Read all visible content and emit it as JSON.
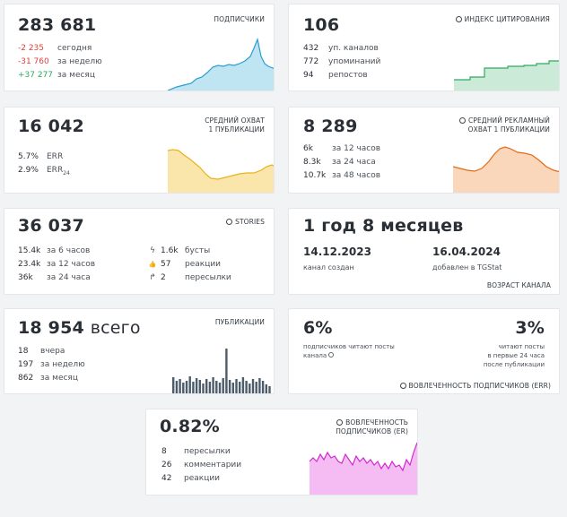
{
  "subscribers": {
    "value": "283 681",
    "label": "ПОДПИСЧИКИ",
    "rows": [
      {
        "value": "-2 235",
        "text": "сегодня"
      },
      {
        "value": "-31 760",
        "text": "за неделю"
      },
      {
        "value": "+37 277",
        "text": "за месяц"
      }
    ],
    "color": "#49b5dc"
  },
  "citation": {
    "value": "106",
    "label": "ИНДЕКС ЦИТИРОВАНИЯ",
    "rows": [
      {
        "value": "432",
        "text": "уп. каналов"
      },
      {
        "value": "772",
        "text": "упоминаний"
      },
      {
        "value": "94",
        "text": "репостов"
      }
    ],
    "color": "#2eaa5f"
  },
  "reach": {
    "value": "16 042",
    "label_line1": "СРЕДНИЙ ОХВАТ",
    "label_line2": "1 ПУБЛИКАЦИИ",
    "rows": [
      {
        "value": "5.7%",
        "text": "ERR"
      },
      {
        "value": "2.9%",
        "text": "ERR",
        "sub": "24"
      }
    ],
    "color": "#f2c12e"
  },
  "ad_reach": {
    "value": "8 289",
    "label_line1": "СРЕДНИЙ РЕКЛАМНЫЙ",
    "label_line2": "ОХВАТ 1 ПУБЛИКАЦИИ",
    "rows": [
      {
        "value": "6k",
        "text": "за 12 часов"
      },
      {
        "value": "8.3k",
        "text": "за 24 часа"
      },
      {
        "value": "10.7k",
        "text": "за 48 часов"
      }
    ],
    "color": "#f07a1e"
  },
  "stories": {
    "value": "36 037",
    "label": "STORIES",
    "rows": [
      {
        "value": "15.4k",
        "text": "за 6 часов"
      },
      {
        "value": "23.4k",
        "text": "за 12 часов"
      },
      {
        "value": "36k",
        "text": "за 24 часа"
      }
    ],
    "rows2": [
      {
        "icon": "ϟ",
        "value": "1.6k",
        "text": "бусты"
      },
      {
        "icon": "👍",
        "value": "57",
        "text": "реакции"
      },
      {
        "icon": "↱",
        "value": "2",
        "text": "пересылки"
      }
    ]
  },
  "age": {
    "value": "1 год 8 месяцев",
    "created_date": "14.12.2023",
    "created_text": "канал создан",
    "added_date": "16.04.2024",
    "added_text": "добавлен в TGStat",
    "label": "ВОЗРАСТ КАНАЛА"
  },
  "posts": {
    "value": "18 954",
    "suffix": "всего",
    "label": "ПУБЛИКАЦИИ",
    "rows": [
      {
        "value": "18",
        "text": "вчера"
      },
      {
        "value": "197",
        "text": "за неделю"
      },
      {
        "value": "862",
        "text": "за месяц"
      }
    ],
    "color": "#4d5c6b"
  },
  "err_engagement": {
    "left_value": "6%",
    "left_text_line1": "подписчиков читают посты",
    "left_text_line2": "канала",
    "right_value": "3%",
    "right_text_line1": "читают посты",
    "right_text_line2": "в первые 24 часа",
    "right_text_line3": "после публикации",
    "label": "ВОВЛЕЧЕННОСТЬ ПОДПИСЧИКОВ (ERR)"
  },
  "er_engagement": {
    "value": "0.82%",
    "label_line1": "ВОВЛЕЧЕННОСТЬ",
    "label_line2": "ПОДПИСЧИКОВ (ER)",
    "rows": [
      {
        "value": "8",
        "text": "пересылки"
      },
      {
        "value": "26",
        "text": "комментарии"
      },
      {
        "value": "42",
        "text": "реакции"
      }
    ],
    "color": "#e23fe0"
  }
}
